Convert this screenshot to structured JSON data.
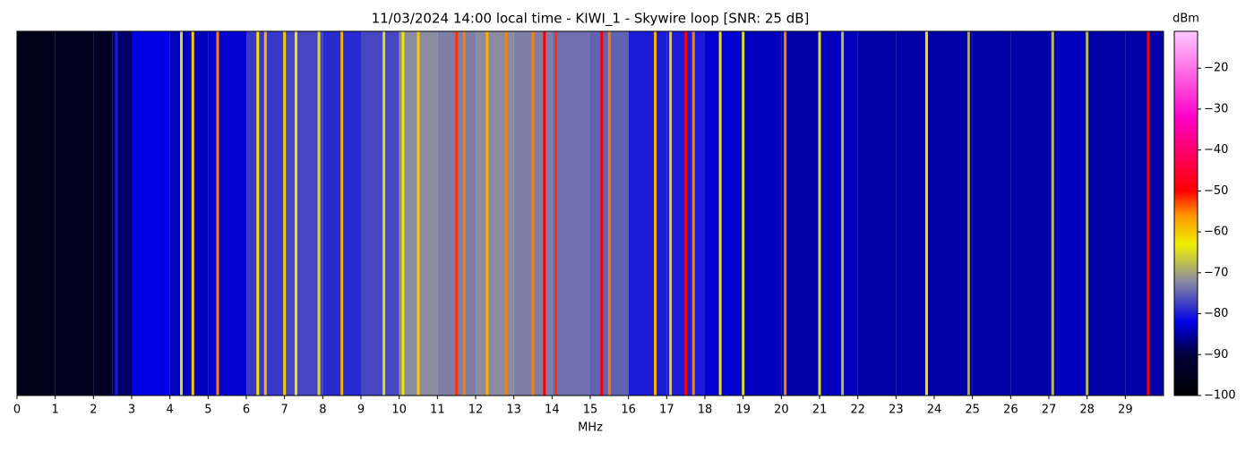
{
  "chart_data": {
    "type": "waterfall",
    "title": "11/03/2024 14:00 local time - KIWI_1 - Skywire loop [SNR: 25 dB]",
    "x_label": "MHz",
    "colorbar_label": "dBm",
    "xlim": [
      0,
      30
    ],
    "xticks": [
      0,
      1,
      2,
      3,
      4,
      5,
      6,
      7,
      8,
      9,
      10,
      11,
      12,
      13,
      14,
      15,
      16,
      17,
      18,
      19,
      20,
      21,
      22,
      23,
      24,
      25,
      26,
      27,
      28,
      29
    ],
    "clim": [
      -100,
      -11
    ],
    "cticks": [
      {
        "value": -20,
        "label": "−20"
      },
      {
        "value": -30,
        "label": "−30"
      },
      {
        "value": -40,
        "label": "−40"
      },
      {
        "value": -50,
        "label": "−50"
      },
      {
        "value": -60,
        "label": "−60"
      },
      {
        "value": -70,
        "label": "−70"
      },
      {
        "value": -80,
        "label": "−80"
      },
      {
        "value": -90,
        "label": "−90"
      },
      {
        "value": -100,
        "label": "−100"
      }
    ],
    "colormap": [
      {
        "value": -100,
        "color": "#000000"
      },
      {
        "value": -90,
        "color": "#00003c"
      },
      {
        "value": -82,
        "color": "#0000e6"
      },
      {
        "value": -72,
        "color": "#8c8ca0"
      },
      {
        "value": -63,
        "color": "#f0f000"
      },
      {
        "value": -56,
        "color": "#ff9600"
      },
      {
        "value": -50,
        "color": "#ff0000"
      },
      {
        "value": -32,
        "color": "#ff00c8"
      },
      {
        "value": -11,
        "color": "#ffc8ff"
      }
    ],
    "noise_floor": {
      "bins": [
        0,
        1,
        2,
        2.5,
        3,
        4,
        5,
        6,
        7,
        8,
        9,
        10,
        11,
        12,
        13,
        14,
        15,
        16,
        17,
        18,
        19,
        20,
        21,
        22,
        23,
        24,
        25,
        26,
        27,
        28,
        29,
        30
      ],
      "values": [
        -96,
        -95,
        -94,
        -88,
        -82,
        -84,
        -83,
        -78,
        -77,
        -79,
        -77,
        -72,
        -73,
        -72,
        -73,
        -74,
        -75,
        -80,
        -80,
        -83,
        -84,
        -85,
        -84,
        -85,
        -85,
        -85,
        -85,
        -85,
        -84,
        -85,
        -85
      ]
    },
    "signals": {
      "x": [
        2.6,
        4.3,
        4.6,
        5.25,
        6.3,
        6.5,
        7.0,
        7.3,
        7.9,
        8.5,
        9.6,
        10.1,
        10.5,
        11.5,
        11.7,
        12.3,
        12.8,
        13.5,
        13.8,
        14.1,
        15.3,
        15.5,
        16.7,
        17.1,
        17.5,
        17.7,
        18.4,
        19.0,
        20.1,
        21.0,
        21.6,
        23.8,
        24.9,
        27.1,
        28.0,
        29.6
      ],
      "values": [
        -80,
        -65,
        -60,
        -55,
        -62,
        -58,
        -60,
        -62,
        -65,
        -58,
        -65,
        -62,
        -60,
        -52,
        -55,
        -58,
        -55,
        -55,
        -50,
        -52,
        -50,
        -55,
        -58,
        -60,
        -50,
        -55,
        -62,
        -65,
        -55,
        -65,
        -68,
        -62,
        -70,
        -68,
        -68,
        -50
      ]
    }
  }
}
